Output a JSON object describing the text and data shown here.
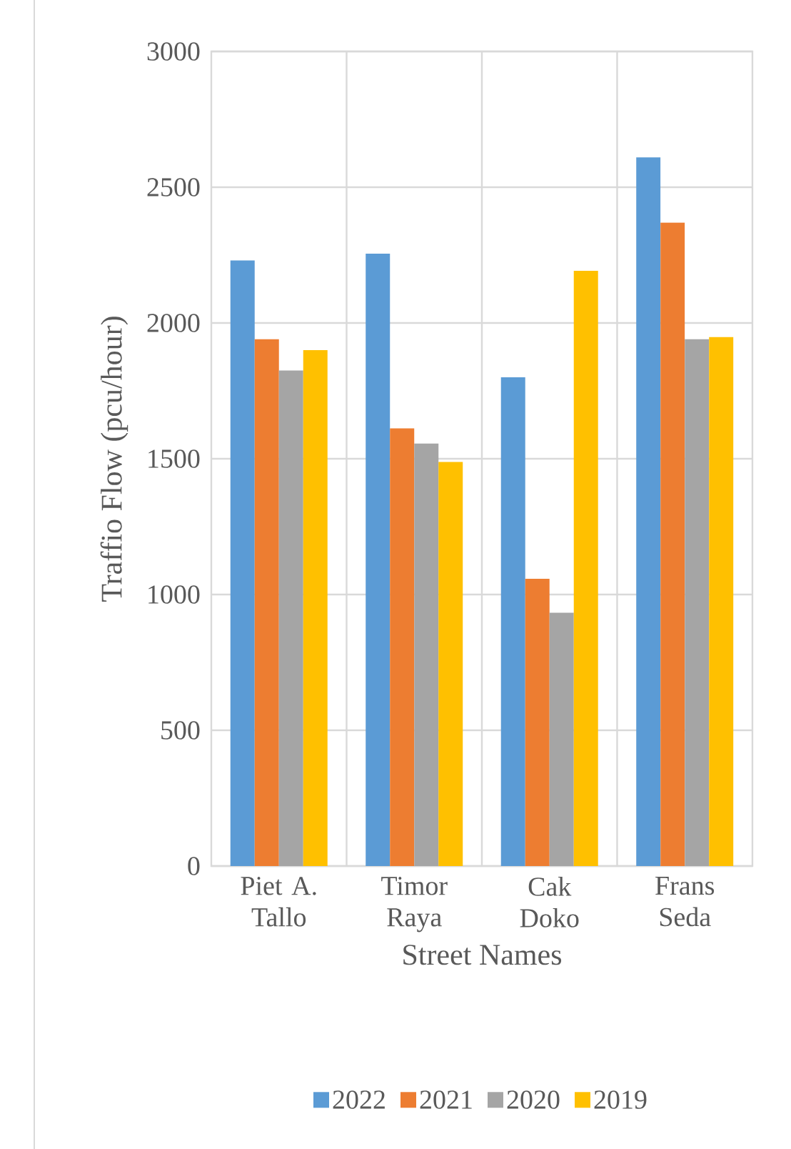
{
  "chart_data": {
    "type": "bar",
    "xlabel": "Street Names",
    "ylabel": "Traffio Flow (pcu/hour)",
    "categories": [
      "Piet A. Tallo",
      "Timor Raya",
      "Cak Doko",
      "Frans Seda"
    ],
    "series": [
      {
        "name": "2022",
        "color": "#5b9bd5",
        "values": [
          2230,
          2255,
          1800,
          2610
        ]
      },
      {
        "name": "2021",
        "color": "#ed7d31",
        "values": [
          1940,
          1612,
          1058,
          2370
        ]
      },
      {
        "name": "2020",
        "color": "#a5a5a5",
        "values": [
          1825,
          1556,
          933,
          1940
        ]
      },
      {
        "name": "2019",
        "color": "#ffc000",
        "values": [
          1900,
          1488,
          2192,
          1948
        ]
      }
    ],
    "ylim": [
      0,
      3000
    ],
    "yticks": [
      0,
      500,
      1000,
      1500,
      2000,
      2500,
      3000
    ],
    "grid": true,
    "legend": "bottom"
  }
}
